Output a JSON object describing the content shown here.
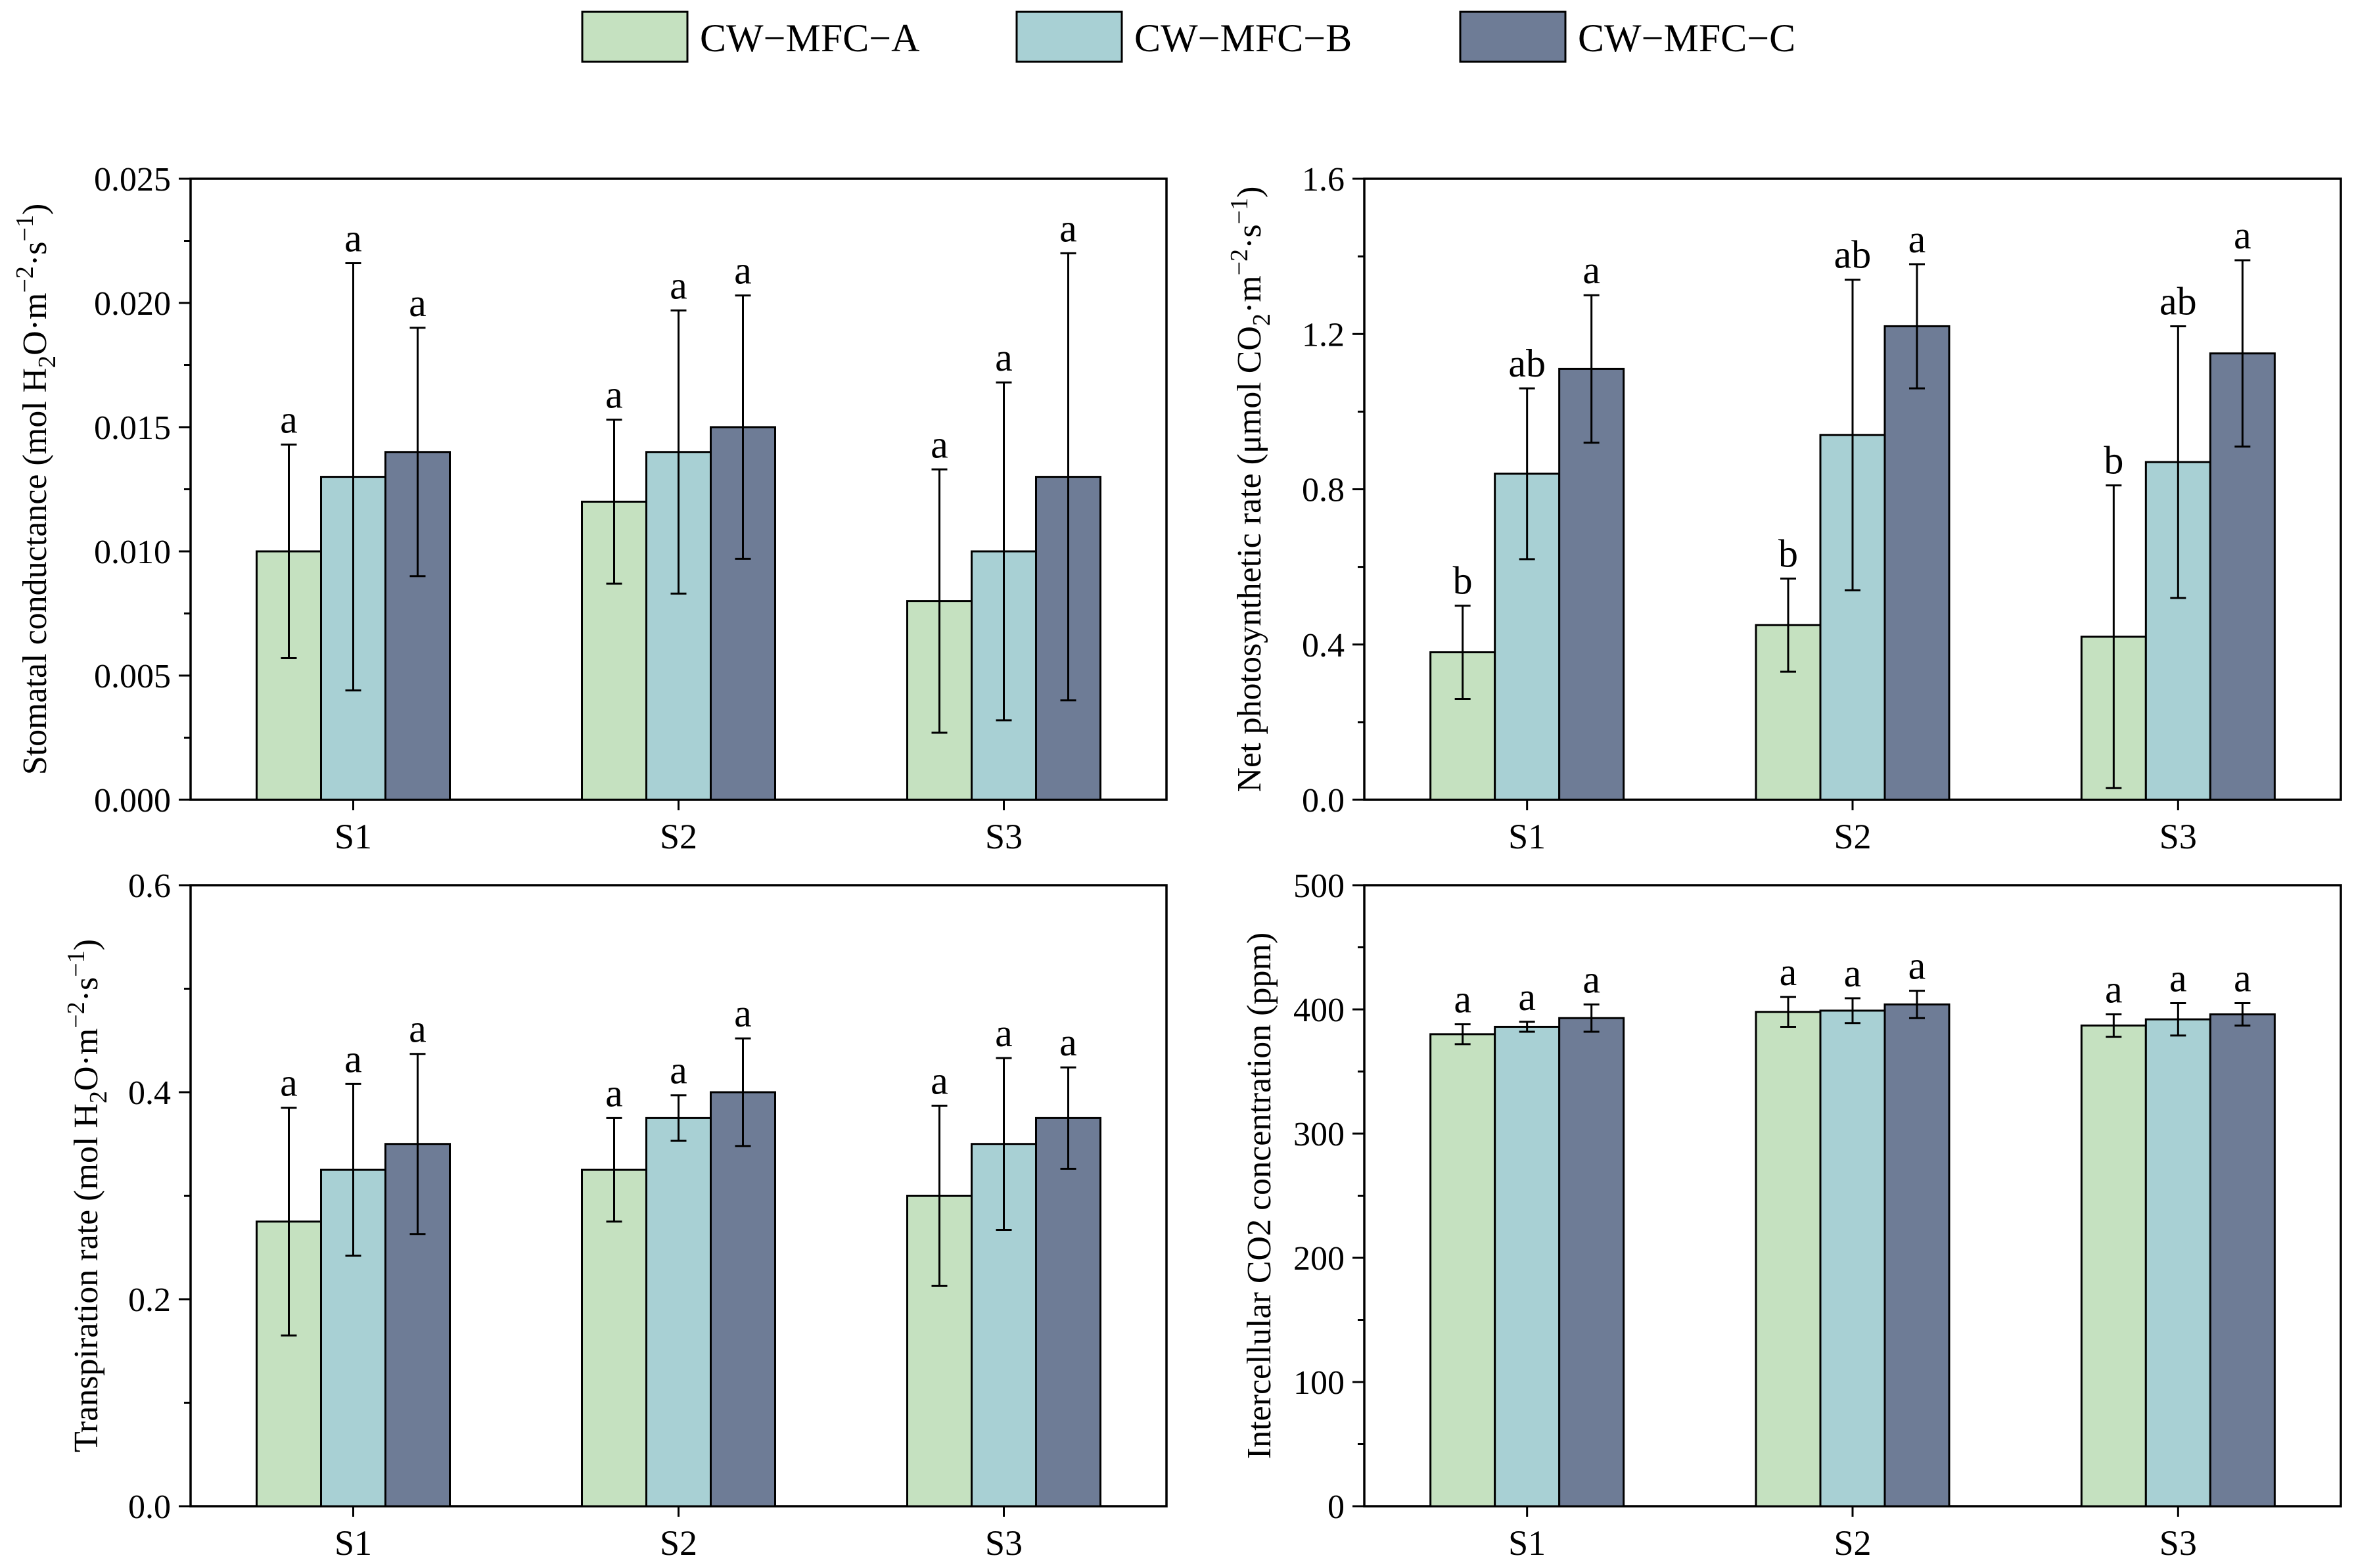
{
  "legend": {
    "series_names": [
      "CW−MFC−A",
      "CW−MFC−B",
      "CW−MFC−C"
    ],
    "colors": [
      "#c5e1c0",
      "#a8d0d4",
      "#6e7c96"
    ]
  },
  "chart_data": [
    {
      "type": "bar",
      "panel": "top-left",
      "ylabel_parts": {
        "pre": "Stomatal conductance (mol H",
        "sub": "2",
        "mid": "O·m",
        "sup1": "−2",
        "mid2": "·s",
        "sup2": "−1",
        "post": ")"
      },
      "categories": [
        "S1",
        "S2",
        "S3"
      ],
      "ylim": [
        0,
        0.025
      ],
      "yticks": [
        0,
        0.005,
        0.01,
        0.015,
        0.02,
        0.025
      ],
      "ytick_labels": [
        "0.000",
        "0.005",
        "0.010",
        "0.015",
        "0.020",
        "0.025"
      ],
      "series": [
        {
          "name": "CW−MFC−A",
          "values": [
            0.01,
            0.012,
            0.008
          ],
          "errors": [
            0.0043,
            0.0033,
            0.0053
          ],
          "letters": [
            "a",
            "a",
            "a"
          ]
        },
        {
          "name": "CW−MFC−B",
          "values": [
            0.013,
            0.014,
            0.01
          ],
          "errors": [
            0.0086,
            0.0057,
            0.0068
          ],
          "letters": [
            "a",
            "a",
            "a"
          ]
        },
        {
          "name": "CW−MFC−C",
          "values": [
            0.014,
            0.015,
            0.013
          ],
          "errors": [
            0.005,
            0.0053,
            0.009
          ],
          "letters": [
            "a",
            "a",
            "a"
          ]
        }
      ]
    },
    {
      "type": "bar",
      "panel": "top-right",
      "ylabel_parts": {
        "pre": "Net photosynthetic rate (μmol CO",
        "sub": "2",
        "mid": "·m",
        "sup1": "−2",
        "mid2": "·s",
        "sup2": "−1",
        "post": ")"
      },
      "categories": [
        "S1",
        "S2",
        "S3"
      ],
      "ylim": [
        0,
        1.6
      ],
      "yticks": [
        0,
        0.4,
        0.8,
        1.2,
        1.6
      ],
      "ytick_labels": [
        "0.0",
        "0.4",
        "0.8",
        "1.2",
        "1.6"
      ],
      "series": [
        {
          "name": "CW−MFC−A",
          "values": [
            0.38,
            0.45,
            0.42
          ],
          "errors": [
            0.12,
            0.12,
            0.39
          ],
          "letters": [
            "b",
            "b",
            "b"
          ]
        },
        {
          "name": "CW−MFC−B",
          "values": [
            0.84,
            0.94,
            0.87
          ],
          "errors": [
            0.22,
            0.4,
            0.35
          ],
          "letters": [
            "ab",
            "ab",
            "ab"
          ]
        },
        {
          "name": "CW−MFC−C",
          "values": [
            1.11,
            1.22,
            1.15
          ],
          "errors": [
            0.19,
            0.16,
            0.24
          ],
          "letters": [
            "a",
            "a",
            "a"
          ]
        }
      ]
    },
    {
      "type": "bar",
      "panel": "bottom-left",
      "ylabel_parts": {
        "pre": "Transpiration rate (mol H",
        "sub": "2",
        "mid": "O·m",
        "sup1": "−2",
        "mid2": "·s",
        "sup2": "−1",
        "post": ")"
      },
      "categories": [
        "S1",
        "S2",
        "S3"
      ],
      "ylim": [
        0,
        0.6
      ],
      "yticks": [
        0,
        0.2,
        0.4,
        0.6
      ],
      "ytick_labels": [
        "0.0",
        "0.2",
        "0.4",
        "0.6"
      ],
      "series": [
        {
          "name": "CW−MFC−A",
          "values": [
            0.275,
            0.325,
            0.3
          ],
          "errors": [
            0.11,
            0.05,
            0.087
          ],
          "letters": [
            "a",
            "a",
            "a"
          ]
        },
        {
          "name": "CW−MFC−B",
          "values": [
            0.325,
            0.375,
            0.35
          ],
          "errors": [
            0.083,
            0.022,
            0.083
          ],
          "letters": [
            "a",
            "a",
            "a"
          ]
        },
        {
          "name": "CW−MFC−C",
          "values": [
            0.35,
            0.4,
            0.375
          ],
          "errors": [
            0.087,
            0.052,
            0.049
          ],
          "letters": [
            "a",
            "a",
            "a"
          ]
        }
      ]
    },
    {
      "type": "bar",
      "panel": "bottom-right",
      "ylabel_parts": {
        "pre": "Intercellular CO2 concentration (ppm)",
        "sub": "",
        "mid": "",
        "sup1": "",
        "mid2": "",
        "sup2": "",
        "post": ""
      },
      "categories": [
        "S1",
        "S2",
        "S3"
      ],
      "ylim": [
        0,
        500
      ],
      "yticks": [
        0,
        100,
        200,
        300,
        400,
        500
      ],
      "ytick_labels": [
        "0",
        "100",
        "200",
        "300",
        "400",
        "500"
      ],
      "series": [
        {
          "name": "CW−MFC−A",
          "values": [
            380,
            398,
            387
          ],
          "errors": [
            8,
            12,
            9
          ],
          "letters": [
            "a",
            "a",
            "a"
          ]
        },
        {
          "name": "CW−MFC−B",
          "values": [
            386,
            399,
            392
          ],
          "errors": [
            4,
            10,
            13
          ],
          "letters": [
            "a",
            "a",
            "a"
          ]
        },
        {
          "name": "CW−MFC−C",
          "values": [
            393,
            404,
            396
          ],
          "errors": [
            11,
            11,
            9
          ],
          "letters": [
            "a",
            "a",
            "a"
          ]
        }
      ]
    }
  ]
}
